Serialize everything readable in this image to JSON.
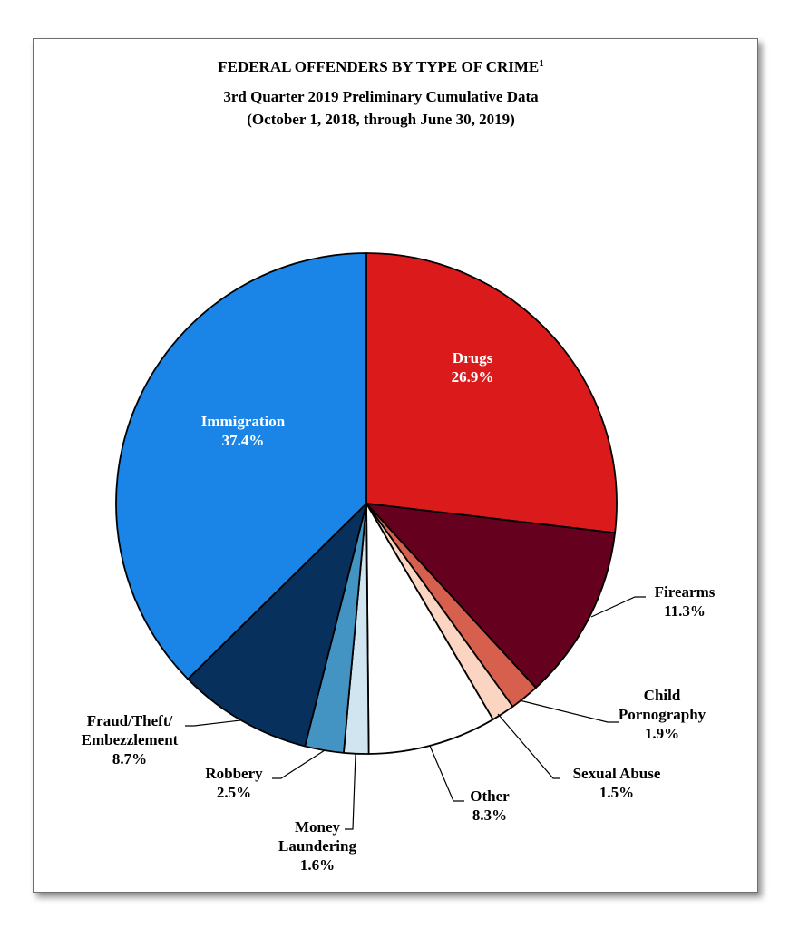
{
  "chart_data": {
    "type": "pie",
    "title": "FEDERAL OFFENDERS BY TYPE OF CRIME",
    "title_superscript": "1",
    "subtitle_lines": [
      "3rd Quarter 2019 Preliminary Cumulative Data",
      "(October 1, 2018, through June 30, 2019)"
    ],
    "slices": [
      {
        "label_lines": [
          "Drugs"
        ],
        "pct_label": "26.9%",
        "value": 26.9,
        "color": "#db1a1b"
      },
      {
        "label_lines": [
          "Firearms"
        ],
        "pct_label": "11.3%",
        "value": 11.3,
        "color": "#66001f"
      },
      {
        "label_lines": [
          "Child",
          "Pornography"
        ],
        "pct_label": "1.9%",
        "value": 1.9,
        "color": "#d6604d"
      },
      {
        "label_lines": [
          "Sexual Abuse"
        ],
        "pct_label": "1.5%",
        "value": 1.5,
        "color": "#fcd5c2"
      },
      {
        "label_lines": [
          "Other"
        ],
        "pct_label": "8.3%",
        "value": 8.3,
        "color": "#ffffff"
      },
      {
        "label_lines": [
          "Money",
          "Laundering"
        ],
        "pct_label": "1.6%",
        "value": 1.6,
        "color": "#d1e5f0"
      },
      {
        "label_lines": [
          "Robbery"
        ],
        "pct_label": "2.5%",
        "value": 2.5,
        "color": "#4393c3"
      },
      {
        "label_lines": [
          "Fraud/Theft/",
          "Embezzlement"
        ],
        "pct_label": "8.7%",
        "value": 8.7,
        "color": "#08305d"
      },
      {
        "label_lines": [
          "Immigration"
        ],
        "pct_label": "37.4%",
        "value": 37.4,
        "color": "#1a85e6"
      }
    ]
  }
}
